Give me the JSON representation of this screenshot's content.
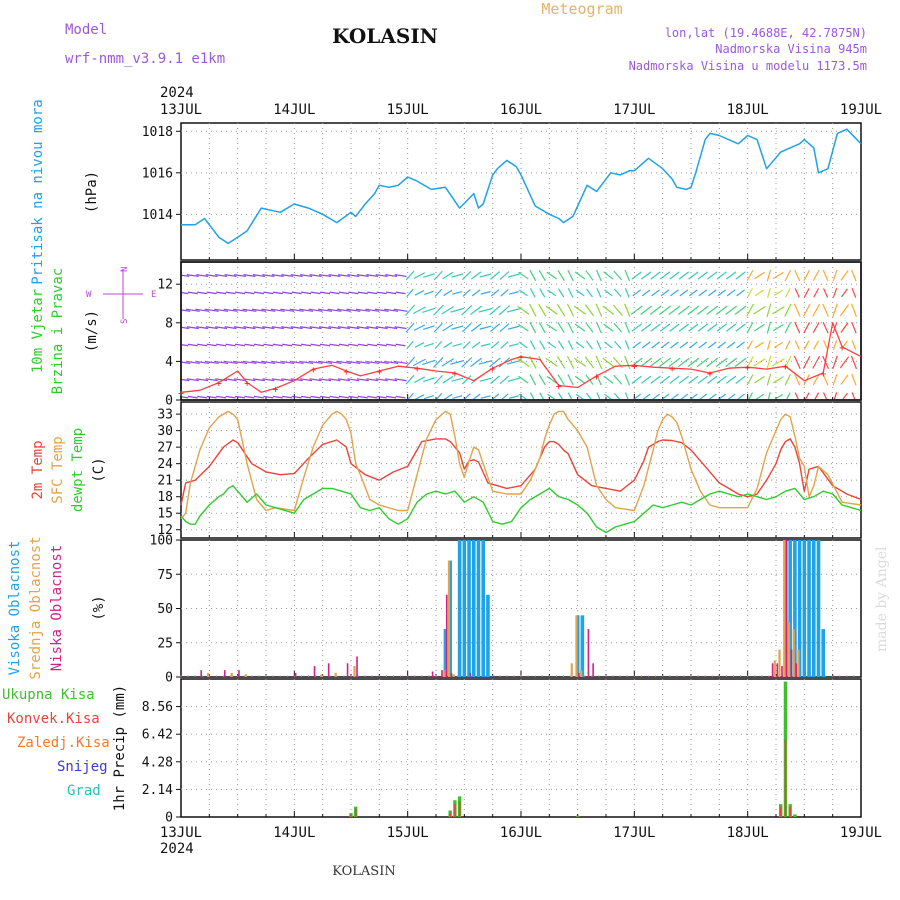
{
  "header": {
    "model_label": "Model",
    "model_name": "wrf-nmm_v3.9.1 e1km",
    "station": "KOLASIN",
    "product": "Meteogram",
    "lonlat": "lon,lat (19.4688E, 42.7875N)",
    "elevation": "Nadmorska Visina 945m",
    "model_elevation": "Nadmorska Visina u modelu 1173.5m",
    "watermark": "made by Angel",
    "footer_station": "KOLASIN"
  },
  "time_axis": {
    "year": "2024",
    "days": [
      "13JUL",
      "14JUL",
      "15JUL",
      "16JUL",
      "17JUL",
      "18JUL",
      "19JUL"
    ],
    "hours_total": 144
  },
  "colors": {
    "pressure": "#1fa2e6",
    "temp2m": "#e8443a",
    "sfc": "#e2a34a",
    "dewpt": "#2ecc2e",
    "high_cloud": "#1fa2e6",
    "mid_cloud": "#e2a34a",
    "low_cloud": "#d0208a",
    "rain_total": "#3fbf2f",
    "rain_conv": "#e8443a",
    "freezing": "#f07a2a",
    "snow": "#3a3ad8",
    "graupel": "#21c4b0",
    "wind_legend": "#b84ad8"
  },
  "chart_data": [
    {
      "type": "line",
      "panel": "pressure",
      "ylabel": [
        "Pritisak na nivou mora"
      ],
      "unit": "(hPa)",
      "yticks": [
        1014,
        1016,
        1018
      ],
      "ylim": [
        1011.8,
        1018.4
      ],
      "series": [
        {
          "hours": [
            0,
            3,
            5,
            8,
            10,
            12,
            14,
            17,
            19,
            21,
            24,
            27,
            30,
            33,
            36,
            37,
            39,
            41,
            42,
            44,
            46,
            48,
            50,
            53,
            56,
            59,
            62,
            63,
            64,
            66,
            67,
            69,
            71,
            72,
            75,
            78,
            80,
            81,
            83,
            86,
            88,
            91,
            93,
            95,
            96,
            99,
            102,
            104,
            105,
            107,
            108,
            109,
            111,
            112,
            114,
            118,
            120,
            122,
            124,
            127,
            130,
            131,
            132,
            134,
            135,
            137,
            139,
            141,
            144
          ],
          "values": [
            1013.5,
            1013.5,
            1013.8,
            1012.9,
            1012.6,
            1012.9,
            1013.2,
            1014.3,
            1014.2,
            1014.1,
            1014.5,
            1014.3,
            1014.0,
            1013.6,
            1014.1,
            1013.9,
            1014.5,
            1015.0,
            1015.4,
            1015.3,
            1015.4,
            1015.8,
            1015.6,
            1015.2,
            1015.3,
            1014.3,
            1015.0,
            1014.3,
            1014.5,
            1015.9,
            1016.2,
            1016.6,
            1016.3,
            1015.9,
            1014.4,
            1014.0,
            1013.8,
            1013.6,
            1013.9,
            1015.4,
            1015.1,
            1016.0,
            1015.9,
            1016.1,
            1016.1,
            1016.7,
            1016.2,
            1015.7,
            1015.3,
            1015.2,
            1015.3,
            1016.0,
            1017.6,
            1017.9,
            1017.8,
            1017.4,
            1017.8,
            1017.6,
            1016.2,
            1017.0,
            1017.3,
            1017.4,
            1017.6,
            1017.2,
            1016.0,
            1016.2,
            1017.9,
            1018.1,
            1017.4
          ]
        }
      ]
    },
    {
      "type": "line",
      "panel": "wind",
      "ylabel": [
        "10m Vjetar",
        "Brzina i Pravac"
      ],
      "unit": "(m/s)",
      "compass": [
        "N",
        "W",
        "E",
        "S"
      ],
      "yticks": [
        0,
        4,
        8,
        12
      ],
      "ylim": [
        0,
        14.3
      ],
      "series": [
        {
          "name": "speed",
          "hours": [
            0,
            4,
            8,
            12,
            14,
            17,
            20,
            24,
            28,
            32,
            35,
            38,
            42,
            46,
            50,
            54,
            58,
            62,
            66,
            70,
            72,
            76,
            80,
            84,
            88,
            92,
            96,
            100,
            104,
            108,
            112,
            116,
            120,
            124,
            128,
            132,
            136,
            138,
            140,
            144
          ],
          "values": [
            0.8,
            1.0,
            1.8,
            3.0,
            1.8,
            0.8,
            1.2,
            2.0,
            3.2,
            3.6,
            3.0,
            2.5,
            3.0,
            3.5,
            3.3,
            3.0,
            2.8,
            2.0,
            3.3,
            4.2,
            4.5,
            4.2,
            1.5,
            1.3,
            2.5,
            3.5,
            3.6,
            3.4,
            3.3,
            3.2,
            2.8,
            3.3,
            3.4,
            3.2,
            3.5,
            2.0,
            2.8,
            8.0,
            5.5,
            4.5
          ]
        }
      ]
    },
    {
      "type": "line",
      "panel": "temperature",
      "ylabel": [
        "2m Temp",
        "SFC Temp",
        "dewpt Temp"
      ],
      "unit": "(C)",
      "yticks": [
        12,
        15,
        18,
        21,
        24,
        27,
        30,
        33
      ],
      "ylim": [
        10.5,
        35.2
      ],
      "series": [
        {
          "name": "2m Temp",
          "hours": [
            0,
            1,
            3,
            6,
            9,
            11,
            12,
            15,
            18,
            21,
            24,
            27,
            30,
            33,
            35,
            36,
            39,
            42,
            45,
            48,
            51,
            54,
            56,
            57,
            59,
            60,
            61,
            62,
            63,
            65,
            67,
            69,
            72,
            75,
            77,
            78,
            79,
            80,
            81,
            82,
            84,
            87,
            90,
            93,
            96,
            98,
            99,
            101,
            102,
            104,
            106,
            108,
            111,
            114,
            116,
            118,
            120,
            122,
            124,
            126,
            127,
            128,
            129,
            130,
            131,
            132,
            133,
            135,
            138,
            141,
            144
          ],
          "values": [
            16.5,
            20.5,
            21.0,
            23.5,
            27.0,
            28.3,
            27.8,
            24.0,
            22.5,
            22.0,
            22.2,
            25.0,
            27.5,
            28.3,
            27.0,
            24.0,
            22.0,
            21.0,
            22.5,
            23.5,
            28.0,
            28.5,
            28.5,
            28.0,
            26.0,
            23.0,
            24.5,
            24.7,
            24.3,
            20.5,
            20.0,
            19.5,
            20.0,
            23.0,
            27.0,
            28.0,
            28.0,
            27.5,
            26.5,
            25.8,
            22.0,
            20.0,
            19.5,
            19.0,
            21.0,
            24.5,
            27.0,
            28.0,
            28.3,
            28.2,
            27.8,
            26.5,
            23.5,
            20.5,
            19.5,
            18.5,
            18.0,
            18.5,
            21.0,
            24.0,
            26.5,
            28.0,
            28.5,
            27.0,
            24.0,
            19.0,
            23.0,
            23.5,
            20.0,
            18.5,
            17.5
          ]
        },
        {
          "name": "SFC Temp",
          "hours": [
            0,
            1,
            2,
            4,
            6,
            8,
            10,
            11,
            12,
            13,
            14,
            16,
            18,
            20,
            24,
            26,
            28,
            30,
            32,
            33,
            34,
            35,
            36,
            37,
            38,
            40,
            42,
            46,
            48,
            50,
            52,
            54,
            56,
            57,
            58,
            59,
            60,
            61,
            62,
            63,
            64,
            65,
            66,
            69,
            72,
            74,
            76,
            77,
            78,
            79,
            80,
            81,
            82,
            84,
            86,
            88,
            90,
            92,
            96,
            98,
            100,
            101,
            102,
            103,
            104,
            105,
            106,
            108,
            110,
            112,
            114,
            120,
            122,
            124,
            126,
            127,
            128,
            129,
            130,
            131,
            132,
            133,
            134,
            135,
            137,
            140,
            144
          ],
          "values": [
            14.0,
            15.0,
            20.5,
            26.5,
            30.5,
            32.5,
            33.5,
            33.0,
            32.0,
            28.0,
            24.0,
            17.5,
            15.5,
            16.0,
            15.5,
            21.5,
            27.0,
            31.0,
            33.0,
            33.5,
            33.0,
            32.0,
            29.5,
            24.0,
            22.0,
            17.5,
            16.5,
            15.5,
            15.5,
            22.0,
            28.5,
            32.0,
            33.5,
            33.0,
            29.0,
            24.0,
            21.5,
            24.5,
            27.0,
            26.5,
            24.0,
            21.5,
            19.0,
            18.5,
            18.5,
            21.0,
            25.0,
            28.5,
            31.0,
            33.0,
            33.5,
            33.5,
            32.0,
            30.0,
            27.0,
            20.0,
            17.5,
            16.0,
            15.5,
            20.0,
            26.5,
            30.0,
            32.0,
            33.0,
            32.5,
            31.5,
            29.0,
            23.0,
            19.0,
            16.5,
            16.0,
            16.0,
            19.5,
            26.0,
            30.0,
            32.0,
            33.0,
            32.5,
            29.0,
            25.0,
            23.5,
            18.0,
            20.0,
            23.5,
            22.0,
            17.0,
            16.5
          ]
        },
        {
          "name": "dewpt Temp",
          "hours": [
            0,
            1,
            2,
            3,
            4,
            6,
            8,
            9,
            10,
            11,
            12,
            14,
            16,
            18,
            20,
            24,
            26,
            28,
            30,
            32,
            34,
            36,
            38,
            40,
            42,
            44,
            46,
            48,
            50,
            52,
            54,
            56,
            58,
            60,
            62,
            64,
            66,
            68,
            70,
            72,
            74,
            76,
            78,
            80,
            82,
            84,
            86,
            88,
            90,
            92,
            94,
            96,
            98,
            100,
            102,
            104,
            106,
            108,
            110,
            112,
            114,
            116,
            118,
            120,
            122,
            124,
            126,
            128,
            130,
            132,
            134,
            136,
            138,
            140,
            142,
            144
          ],
          "values": [
            14.5,
            13.5,
            13.0,
            13.0,
            14.5,
            16.5,
            18.0,
            18.5,
            19.5,
            20.0,
            19.0,
            17.0,
            18.5,
            16.5,
            16.0,
            15.0,
            17.5,
            18.5,
            19.5,
            19.5,
            19.0,
            18.5,
            16.0,
            15.5,
            16.0,
            14.0,
            13.0,
            14.0,
            17.0,
            18.5,
            19.0,
            18.5,
            19.0,
            17.0,
            18.0,
            17.0,
            13.5,
            13.0,
            13.5,
            16.0,
            17.5,
            18.5,
            19.5,
            18.0,
            17.5,
            16.5,
            15.0,
            12.5,
            11.5,
            12.5,
            13.0,
            13.5,
            15.0,
            16.5,
            16.0,
            16.5,
            17.0,
            16.5,
            17.5,
            18.5,
            19.0,
            18.5,
            18.0,
            18.5,
            18.0,
            17.5,
            18.0,
            19.0,
            19.5,
            17.5,
            18.0,
            19.0,
            18.5,
            16.5,
            16.0,
            15.5
          ]
        }
      ]
    },
    {
      "type": "bar",
      "panel": "clouds",
      "ylabel": [
        "Visoka Oblacnost",
        "Srednja Oblacnost",
        "Niska Oblacnost"
      ],
      "unit": "(%)",
      "yticks": [
        0,
        25,
        50,
        75,
        100
      ],
      "ylim": [
        0,
        100
      ],
      "series": [
        {
          "name": "Visoka Oblacnost",
          "hours": [
            56,
            57,
            59,
            60,
            61,
            62,
            63,
            64,
            65,
            84,
            85,
            128,
            129,
            130,
            131,
            132,
            133,
            134,
            135,
            136
          ],
          "values": [
            35,
            85,
            100,
            100,
            100,
            100,
            100,
            100,
            60,
            45,
            45,
            100,
            100,
            100,
            100,
            100,
            100,
            100,
            100,
            35
          ]
        },
        {
          "name": "Srednja Oblacnost",
          "hours": [
            6,
            11,
            14,
            30,
            33,
            37,
            56,
            57,
            58,
            83,
            84,
            85,
            126,
            127,
            128,
            129,
            130,
            131
          ],
          "values": [
            3,
            3,
            2,
            2,
            3,
            8,
            5,
            85,
            2,
            10,
            45,
            5,
            12,
            20,
            100,
            40,
            35,
            20
          ]
        },
        {
          "name": "Niska Oblacnost",
          "hours": [
            4,
            9,
            12,
            24,
            28,
            31,
            35,
            37,
            53,
            55,
            56,
            57,
            61,
            84,
            86,
            87,
            125,
            126,
            127,
            128,
            129,
            130
          ],
          "values": [
            5,
            5,
            5,
            3,
            8,
            10,
            10,
            15,
            4,
            5,
            60,
            3,
            3,
            3,
            35,
            10,
            10,
            10,
            8,
            100,
            20,
            10
          ]
        }
      ]
    },
    {
      "type": "bar",
      "panel": "precip",
      "ylabel": [
        "1hr Precip"
      ],
      "unit": "(mm)",
      "legend": [
        "Ukupna Kisa",
        "Konvek.Kisa",
        "Zaledj.Kisa",
        "Snijeg",
        "Grad"
      ],
      "yticks": [
        0,
        2.14,
        4.28,
        6.42,
        8.56
      ],
      "ylim": [
        0,
        10.7
      ],
      "series": [
        {
          "name": "Ukupna Kisa",
          "hours": [
            36,
            37,
            57,
            58,
            59,
            84,
            127,
            128,
            129,
            130
          ],
          "values": [
            0.3,
            0.8,
            0.5,
            1.3,
            1.6,
            0.1,
            1.0,
            10.5,
            1.0,
            0.2
          ]
        },
        {
          "name": "Konvek.Kisa",
          "hours": [
            36,
            37,
            57,
            58,
            59,
            84,
            127,
            128,
            129
          ],
          "values": [
            0.2,
            0.6,
            0.3,
            1.0,
            1.2,
            0.1,
            0.8,
            6.0,
            0.8
          ]
        }
      ]
    }
  ]
}
